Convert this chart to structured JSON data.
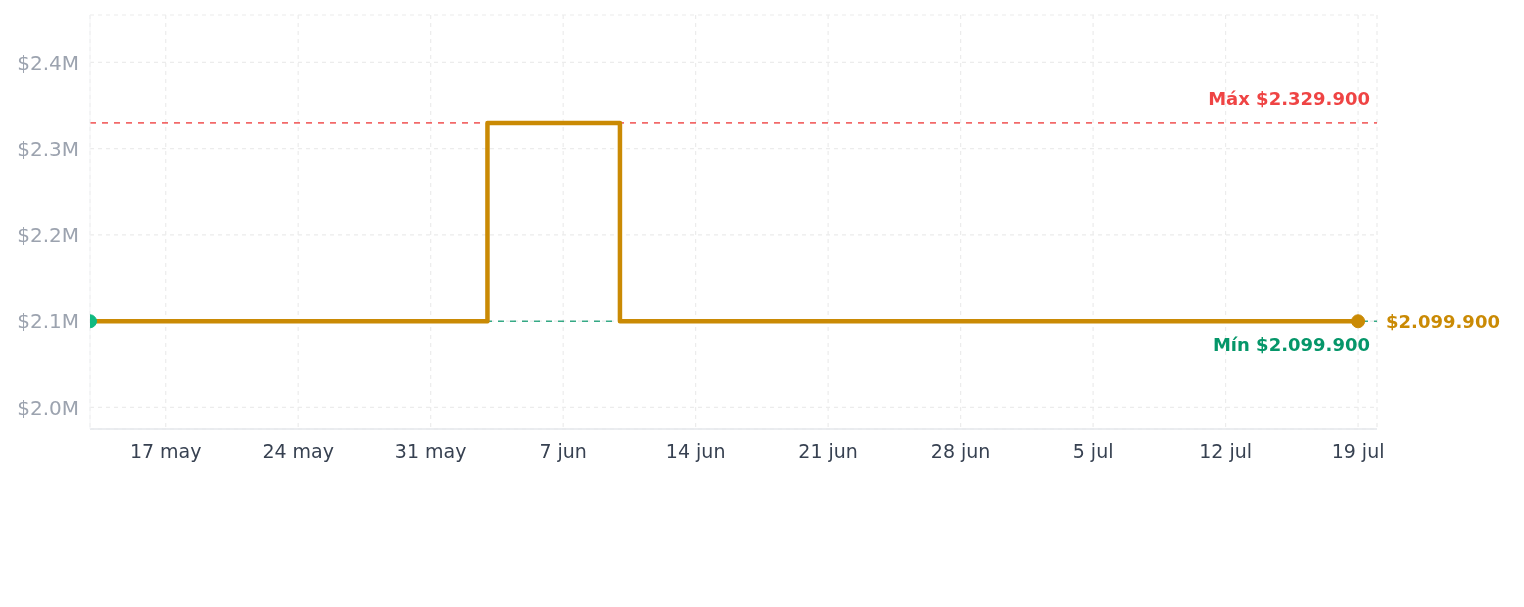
{
  "chart_data": {
    "type": "step",
    "x": [
      "--05-13",
      "--06-03",
      "--06-10",
      "--07-19"
    ],
    "series": [
      {
        "color": "#ca8a04",
        "values": [
          2099900,
          2329900,
          2099900,
          2099900
        ]
      },
      {
        "type": "scatter",
        "color": "#10b981",
        "x": [
          "--05-13"
        ],
        "values": [
          2099900
        ]
      },
      {
        "type": "scatter",
        "color": "#ca8a04",
        "x": [
          "--07-19"
        ],
        "values": [
          2099900
        ]
      }
    ],
    "xlim": [
      "--05-13",
      "--07-20"
    ],
    "xticks": [
      {
        "value": "--05-17",
        "label": "17 may"
      },
      {
        "value": "--05-24",
        "label": "24 may"
      },
      {
        "value": "--05-31",
        "label": "31 may"
      },
      {
        "value": "--06-07",
        "label": "7 jun"
      },
      {
        "value": "--06-14",
        "label": "14 jun"
      },
      {
        "value": "--06-21",
        "label": "21 jun"
      },
      {
        "value": "--06-28",
        "label": "28 jun"
      },
      {
        "value": "--07-05",
        "label": "5 jul"
      },
      {
        "value": "--07-12",
        "label": "12 jul"
      },
      {
        "value": "--07-19",
        "label": "19 jul"
      }
    ],
    "ylim": [
      1975000,
      2455000
    ],
    "yticks": [
      {
        "value": 2000000,
        "label": "$2.0M"
      },
      {
        "value": 2100000,
        "label": "$2.1M"
      },
      {
        "value": 2200000,
        "label": "$2.2M"
      },
      {
        "value": 2300000,
        "label": "$2.3M"
      },
      {
        "value": 2400000,
        "label": "$2.4M"
      }
    ],
    "ref_lines": [
      {
        "axis": "y",
        "value": 2329900,
        "label": "Máx $2.329.900",
        "color": "#ef4444",
        "line_style": "dashed"
      },
      {
        "axis": "y",
        "value": 2099900,
        "label": "Mín $2.099.900",
        "color": "#059669",
        "line_style": "dashed"
      }
    ],
    "annotations": [
      {
        "text": "$2.099.900",
        "x": "--07-19",
        "y": 2099900
      }
    ],
    "grid": true
  }
}
